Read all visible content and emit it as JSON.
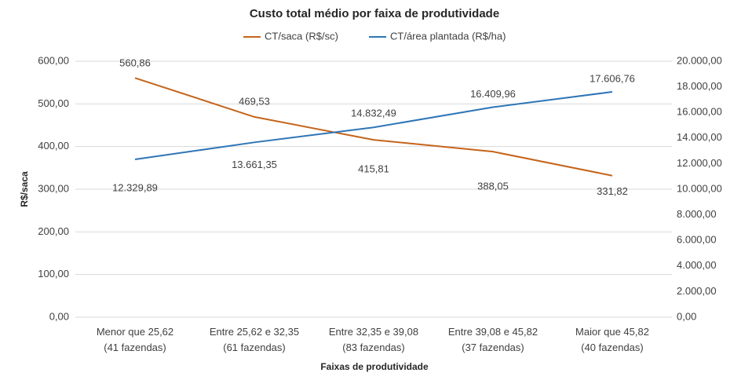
{
  "chart_data": {
    "type": "line",
    "title": "Custo total médio por faixa de produtividade",
    "x_label": "Faixas de produtividade",
    "y_label": "R$/saca",
    "categories": [
      [
        "Menor que 25,62",
        "(41 fazendas)"
      ],
      [
        "Entre 25,62 e 32,35",
        "(61 fazendas)"
      ],
      [
        "Entre 32,35 e 39,08",
        "(83 fazendas)"
      ],
      [
        "Entre 39,08 e 45,82",
        "(37 fazendas)"
      ],
      [
        "Maior que 45,82",
        "(40 fazendas)"
      ]
    ],
    "series": [
      {
        "name": "CT/saca (R$/sc)",
        "color": "#c5641a",
        "values": [
          560.86,
          469.53,
          415.81,
          388.05,
          331.82
        ],
        "value_labels": [
          "560,86",
          "469,53",
          "415,81",
          "388,05",
          "331,82"
        ]
      },
      {
        "name": "CT/área plantada (R$/ha)",
        "color": "#2e75b6",
        "axis": "y2",
        "values": [
          12329.89,
          13661.35,
          14832.49,
          16409.96,
          17606.76
        ],
        "value_labels": [
          "12.329,89",
          "13.661,35",
          "14.832,49",
          "16.409,96",
          "17.606,76"
        ]
      }
    ],
    "ylim": [
      0,
      600
    ],
    "yticks": [
      {
        "value": 0,
        "label": "0,00"
      },
      {
        "value": 100,
        "label": "100,00"
      },
      {
        "value": 200,
        "label": "200,00"
      },
      {
        "value": 300,
        "label": "300,00"
      },
      {
        "value": 400,
        "label": "400,00"
      },
      {
        "value": 500,
        "label": "500,00"
      },
      {
        "value": 600,
        "label": "600,00"
      }
    ],
    "y2lim": [
      0,
      20000
    ],
    "y2ticks": [
      {
        "value": 0,
        "label": "0,00"
      },
      {
        "value": 2000,
        "label": "2.000,00"
      },
      {
        "value": 4000,
        "label": "4.000,00"
      },
      {
        "value": 6000,
        "label": "6.000,00"
      },
      {
        "value": 8000,
        "label": "8.000,00"
      },
      {
        "value": 10000,
        "label": "10.000,00"
      },
      {
        "value": 12000,
        "label": "12.000,00"
      },
      {
        "value": 14000,
        "label": "14.000,00"
      },
      {
        "value": 16000,
        "label": "16.000,00"
      },
      {
        "value": 18000,
        "label": "18.000,00"
      },
      {
        "value": 20000,
        "label": "20.000,00"
      }
    ],
    "grid": true,
    "legend": "top"
  }
}
